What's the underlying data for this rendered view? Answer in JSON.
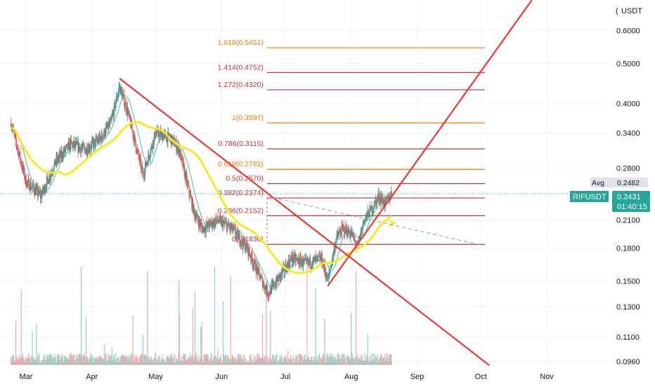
{
  "currency": "USDT",
  "chart_data": {
    "type": "candlestick",
    "symbol": "RIFUSDT",
    "last_price": 0.2431,
    "countdown": "01:40:15",
    "avg_label": "Avg",
    "avg_value": 0.2482,
    "y_scale": "log",
    "ylim": [
      0.0935,
      0.71
    ],
    "y_ticks": [
      "0.6000",
      "0.5000",
      "0.4000",
      "0.3400",
      "0.2800",
      "0.2100",
      "0.1800",
      "0.1500",
      "0.1300",
      "0.1100",
      "0.0960"
    ],
    "x_labels": [
      "Mar",
      "Apr",
      "May",
      "Jun",
      "Jul",
      "Aug",
      "Sep",
      "Oct",
      "Nov"
    ],
    "colors": {
      "up": "#26a69a",
      "down": "#ef5350",
      "ma_fast": "#26a69a",
      "ma_slow": "#f5ea28",
      "trendline": "#f0362f",
      "fib_red": "#c6333b",
      "fib_orange": "#f57c00",
      "badge_price": "#26a69a",
      "badge_avg": "#e0e3eb"
    },
    "fib_levels": [
      {
        "ratio": "1.618",
        "price": 0.5451,
        "label": "1.618(0.5451)",
        "color": "#f57c00"
      },
      {
        "ratio": "1.414",
        "price": 0.4752,
        "label": "1.414(0.4752)",
        "color": "#c6333b"
      },
      {
        "ratio": "1.272",
        "price": 0.432,
        "label": "1.272(0.4320)",
        "color": "#c6333b"
      },
      {
        "ratio": "1",
        "price": 0.3597,
        "label": "1(0.3597)",
        "color": "#f57c00"
      },
      {
        "ratio": "0.786",
        "price": 0.3115,
        "label": "0.786(0.3115)",
        "color": "#c6333b"
      },
      {
        "ratio": "0.618",
        "price": 0.2782,
        "label": "0.618(0.2782)",
        "color": "#f57c00"
      },
      {
        "ratio": "0.5",
        "price": 0.257,
        "label": "0.5(0.2570)",
        "color": "#c6333b"
      },
      {
        "ratio": "0.382",
        "price": 0.2374,
        "label": "0.382(0.2374)",
        "color": "#c6333b"
      },
      {
        "ratio": "0.236",
        "price": 0.2152,
        "label": "0.236(0.2152)",
        "color": "#c6333b"
      },
      {
        "ratio": "0",
        "price": 0.1836,
        "label": "0(0.1836)",
        "color": "#c6333b"
      }
    ],
    "price_anchors": [
      [
        "Feb 22",
        0.36
      ],
      [
        "Mar 1",
        0.26
      ],
      [
        "Mar 8",
        0.24
      ],
      [
        "Mar 15",
        0.29
      ],
      [
        "Mar 22",
        0.32
      ],
      [
        "Mar 29",
        0.31
      ],
      [
        "Apr 5",
        0.33
      ],
      [
        "Apr 10",
        0.36
      ],
      [
        "Apr 14",
        0.44
      ],
      [
        "Apr 18",
        0.38
      ],
      [
        "Apr 25",
        0.27
      ],
      [
        "May 1",
        0.34
      ],
      [
        "May 8",
        0.33
      ],
      [
        "May 12",
        0.31
      ],
      [
        "May 19",
        0.22
      ],
      [
        "May 23",
        0.2
      ],
      [
        "May 30",
        0.21
      ],
      [
        "Jun 6",
        0.2
      ],
      [
        "Jun 13",
        0.18
      ],
      [
        "Jun 20",
        0.15
      ],
      [
        "Jun 23",
        0.14
      ],
      [
        "Jun 27",
        0.15
      ],
      [
        "Jul 4",
        0.17
      ],
      [
        "Jul 11",
        0.165
      ],
      [
        "Jul 18",
        0.17
      ],
      [
        "Jul 21",
        0.15
      ],
      [
        "Jul 25",
        0.19
      ],
      [
        "Jul 28",
        0.2
      ],
      [
        "Aug 1",
        0.195
      ],
      [
        "Aug 4",
        0.18
      ],
      [
        "Aug 7",
        0.21
      ],
      [
        "Aug 11",
        0.225
      ],
      [
        "Aug 14",
        0.24
      ],
      [
        "Aug 17",
        0.23
      ],
      [
        "Aug 20",
        0.243
      ]
    ],
    "trendlines": [
      {
        "name": "descending-resistance",
        "from": [
          "Apr 14",
          0.46
        ],
        "to": [
          "Oct 5",
          0.094
        ]
      },
      {
        "name": "ascending-support",
        "from": [
          "Jul 21",
          0.146
        ],
        "to": [
          "Oct 25",
          0.71
        ]
      }
    ],
    "projection": {
      "from": [
        "Jun 25",
        0.238
      ],
      "to": [
        "Oct 1",
        0.183
      ]
    }
  }
}
